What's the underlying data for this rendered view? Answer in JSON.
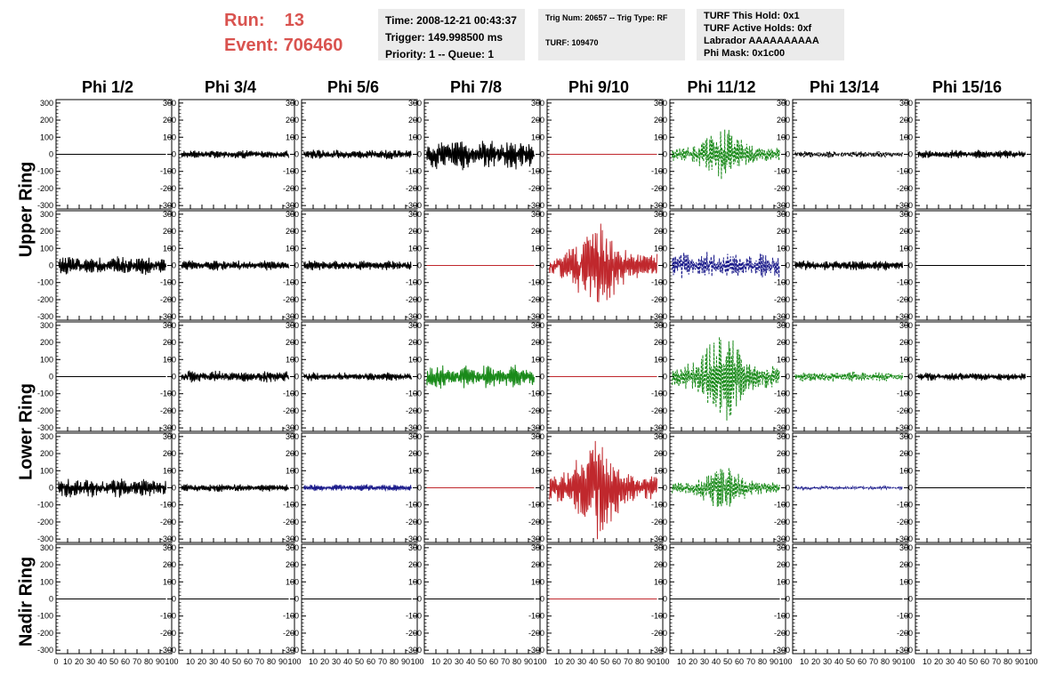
{
  "header": {
    "run_label": "Run:",
    "run_value": "13",
    "event_label": "Event:",
    "event_value": "706460",
    "time_line": "Time: 2008-12-21 00:43:37",
    "trigger_line": "Trigger: 149.998500 ms",
    "priority_line": "Priority: 1 -- Queue: 1",
    "trig_num_line": "Trig Num: 20657 -- Trig Type: RF",
    "turf_line": "TURF: 109470",
    "turf_hold_line": "TURF This Hold: 0x1",
    "turf_active_line": "TURF Active Holds: 0xf",
    "labrador_line": "Labrador AAAAAAAAAA",
    "phi_mask_line": "Phi Mask: 0x1c00"
  },
  "columns": [
    "Phi 1/2",
    "Phi 3/4",
    "Phi 5/6",
    "Phi 7/8",
    "Phi 9/10",
    "Phi 11/12",
    "Phi 13/14",
    "Phi 15/16"
  ],
  "rings": [
    "Upper Ring",
    "Lower Ring",
    "Nadir Ring"
  ],
  "chart_data": {
    "type": "line",
    "xlim": [
      0,
      100
    ],
    "ylim": [
      -320,
      320
    ],
    "x_ticks": [
      "0",
      "10",
      "20",
      "30",
      "40",
      "50",
      "60",
      "70",
      "80",
      "90",
      "100"
    ],
    "x_ticks_edge": [
      "10",
      "20",
      "30",
      "40",
      "50",
      "60",
      "70",
      "80",
      "90",
      "100"
    ],
    "y_ticks": [
      "300",
      "200",
      "100",
      "0",
      "-100",
      "-200",
      "-300"
    ],
    "colors": {
      "black": "#000000",
      "red": "#c0282d",
      "green": "#1a8a1a",
      "blue": "#1a1a8a"
    },
    "panels": [
      [
        {
          "color": "black",
          "amp": 0,
          "style": "solid"
        },
        {
          "color": "black",
          "amp": 25,
          "style": "solid"
        },
        {
          "color": "black",
          "amp": 30,
          "style": "solid"
        },
        {
          "color": "black",
          "amp": 90,
          "style": "solid"
        },
        {
          "color": "red",
          "amp": 0,
          "style": "solid"
        },
        {
          "color": "green",
          "amp": 150,
          "style": "dashed"
        },
        {
          "color": "black",
          "amp": 20,
          "style": "dashed"
        },
        {
          "color": "black",
          "amp": 25,
          "style": "solid"
        }
      ],
      [
        {
          "color": "black",
          "amp": 55,
          "style": "solid"
        },
        {
          "color": "black",
          "amp": 30,
          "style": "solid"
        },
        {
          "color": "black",
          "amp": 30,
          "style": "solid"
        },
        {
          "color": "red",
          "amp": 0,
          "style": "solid"
        },
        {
          "color": "red",
          "amp": 280,
          "style": "solid"
        },
        {
          "color": "blue",
          "amp": 80,
          "style": "dashed"
        },
        {
          "color": "black",
          "amp": 30,
          "style": "solid"
        },
        {
          "color": "black",
          "amp": 0,
          "style": "solid"
        }
      ],
      [
        {
          "color": "black",
          "amp": 0,
          "style": "solid"
        },
        {
          "color": "black",
          "amp": 35,
          "style": "solid"
        },
        {
          "color": "black",
          "amp": 25,
          "style": "solid"
        },
        {
          "color": "green",
          "amp": 70,
          "style": "solid"
        },
        {
          "color": "red",
          "amp": 0,
          "style": "solid"
        },
        {
          "color": "green",
          "amp": 260,
          "style": "dashed"
        },
        {
          "color": "green",
          "amp": 30,
          "style": "dashed"
        },
        {
          "color": "black",
          "amp": 25,
          "style": "solid"
        }
      ],
      [
        {
          "color": "black",
          "amp": 55,
          "style": "solid"
        },
        {
          "color": "black",
          "amp": 25,
          "style": "solid"
        },
        {
          "color": "blue",
          "amp": 20,
          "style": "solid"
        },
        {
          "color": "red",
          "amp": 0,
          "style": "solid"
        },
        {
          "color": "red",
          "amp": 300,
          "style": "solid"
        },
        {
          "color": "green",
          "amp": 130,
          "style": "dashed"
        },
        {
          "color": "blue",
          "amp": 10,
          "style": "dashed"
        },
        {
          "color": "black",
          "amp": 0,
          "style": "solid"
        }
      ],
      [
        {
          "color": "black",
          "amp": 0,
          "style": "solid"
        },
        {
          "color": "black",
          "amp": 0,
          "style": "solid"
        },
        {
          "color": "black",
          "amp": 0,
          "style": "solid"
        },
        {
          "color": "black",
          "amp": 0,
          "style": "solid"
        },
        {
          "color": "red",
          "amp": 0,
          "style": "solid"
        },
        {
          "color": "black",
          "amp": 0,
          "style": "solid"
        },
        {
          "color": "black",
          "amp": 0,
          "style": "solid"
        },
        {
          "color": "black",
          "amp": 0,
          "style": "solid"
        }
      ]
    ]
  }
}
